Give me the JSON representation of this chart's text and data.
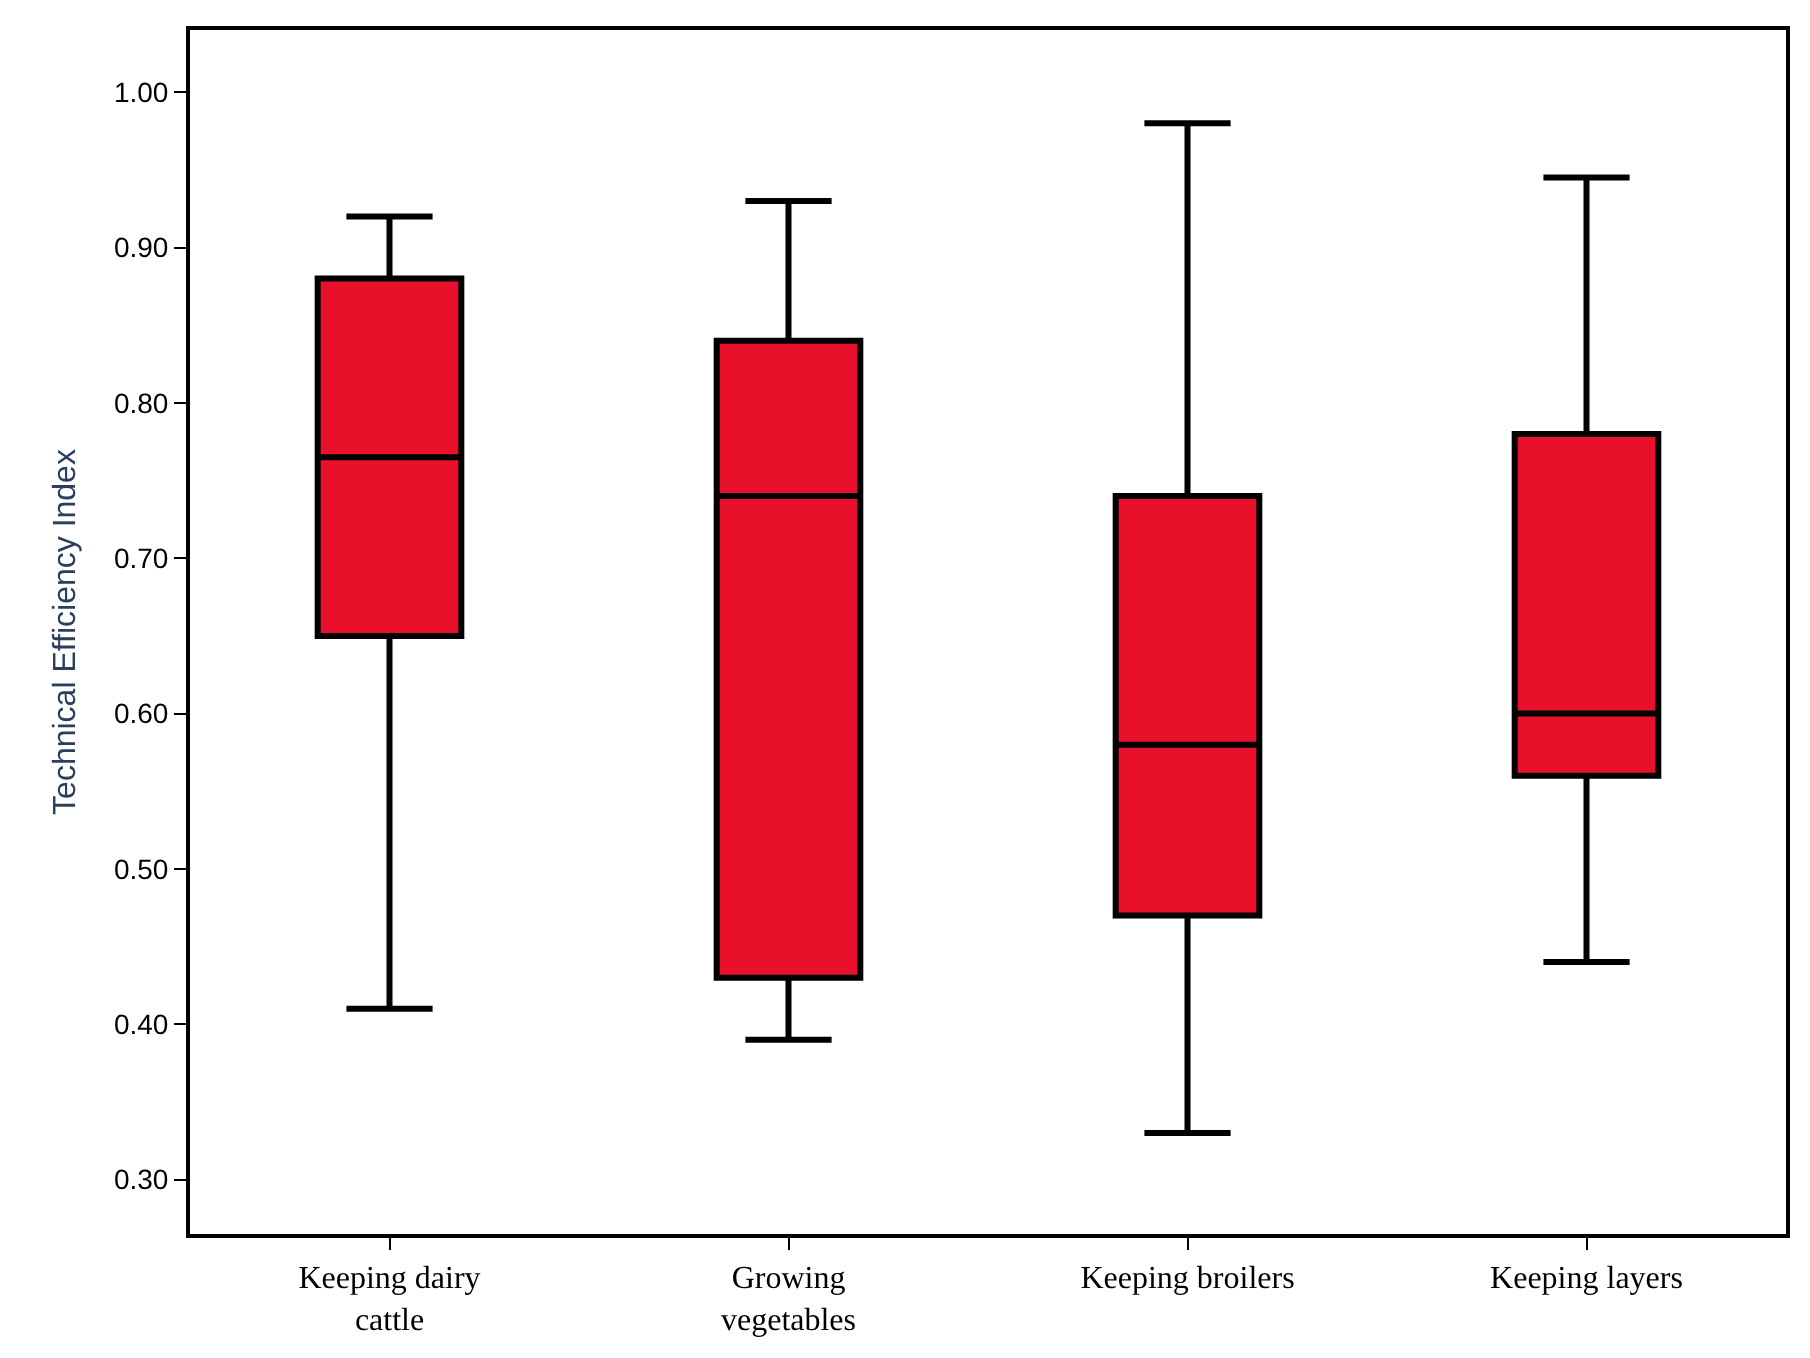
{
  "chart_data": {
    "type": "box",
    "ylabel": "Technical Efficiency Index",
    "categories": [
      "Keeping dairy\ncattle",
      "Growing\nvegetables",
      "Keeping broilers",
      "Keeping layers"
    ],
    "boxes": [
      {
        "low": 0.41,
        "q1": 0.65,
        "median": 0.765,
        "q3": 0.88,
        "high": 0.92
      },
      {
        "low": 0.39,
        "q1": 0.43,
        "median": 0.74,
        "q3": 0.84,
        "high": 0.93
      },
      {
        "low": 0.33,
        "q1": 0.47,
        "median": 0.58,
        "q3": 0.74,
        "high": 0.98
      },
      {
        "low": 0.44,
        "q1": 0.56,
        "median": 0.6,
        "q3": 0.78,
        "high": 0.945
      }
    ],
    "color": "#e8102a",
    "ylim": [
      0.265,
      1.04
    ],
    "yticks": [
      {
        "value": 0.3,
        "label": "0.30"
      },
      {
        "value": 0.4,
        "label": "0.40"
      },
      {
        "value": 0.5,
        "label": "0.50"
      },
      {
        "value": 0.6,
        "label": "0.60"
      },
      {
        "value": 0.7,
        "label": "0.70"
      },
      {
        "value": 0.8,
        "label": "0.80"
      },
      {
        "value": 0.9,
        "label": "0.90"
      },
      {
        "value": 1.0,
        "label": "1.00"
      }
    ]
  }
}
